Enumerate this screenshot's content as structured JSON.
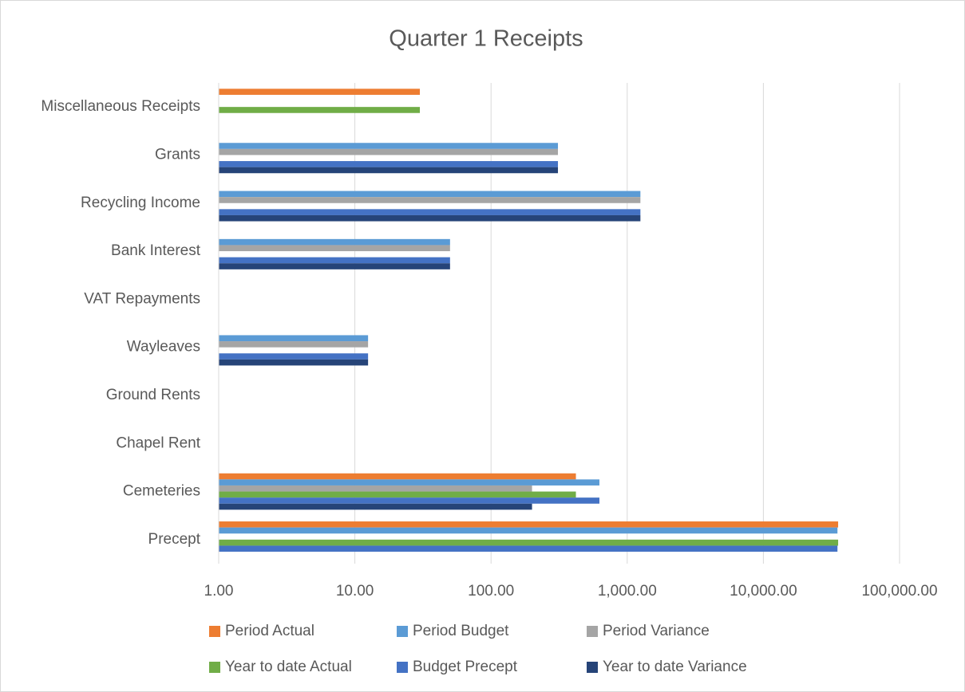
{
  "chart_data": {
    "type": "bar",
    "orientation": "horizontal",
    "title": "Quarter 1 Receipts",
    "categories": [
      "Miscellaneous Receipts",
      "Grants",
      "Recycling Income",
      "Bank Interest",
      "VAT Repayments",
      "Wayleaves",
      "Ground Rents",
      "Chapel Rent",
      "Cemeteries",
      "Precept"
    ],
    "series": [
      {
        "name": "Period Actual",
        "color": "#ed7d31",
        "values": [
          30,
          null,
          null,
          null,
          null,
          null,
          null,
          null,
          420,
          35400
        ]
      },
      {
        "name": "Period Budget",
        "color": "#5b9bd5",
        "values": [
          null,
          310,
          1250,
          50,
          null,
          12.5,
          null,
          null,
          625,
          35000
        ]
      },
      {
        "name": "Period Variance",
        "color": "#a5a5a5",
        "values": [
          null,
          310,
          1250,
          50,
          null,
          12.5,
          null,
          null,
          200,
          null
        ]
      },
      {
        "name": "Year to date Actual",
        "color": "#70ad47",
        "values": [
          30,
          null,
          null,
          null,
          null,
          null,
          null,
          null,
          420,
          35400
        ]
      },
      {
        "name": "Budget Precept",
        "color": "#4472c4",
        "values": [
          null,
          310,
          1250,
          50,
          null,
          12.5,
          null,
          null,
          625,
          35000
        ]
      },
      {
        "name": "Year to date Variance",
        "color": "#264478",
        "values": [
          null,
          310,
          1250,
          50,
          null,
          12.5,
          null,
          null,
          200,
          null
        ]
      }
    ],
    "xscale": "log",
    "xlim": [
      1,
      100000
    ],
    "xticks": [
      {
        "value": 1,
        "label": "1.00"
      },
      {
        "value": 10,
        "label": "10.00"
      },
      {
        "value": 100,
        "label": "100.00"
      },
      {
        "value": 1000,
        "label": "1,000.00"
      },
      {
        "value": 10000,
        "label": "10,000.00"
      },
      {
        "value": 100000,
        "label": "100,000.00"
      }
    ],
    "grid": true,
    "legend": "bottom"
  }
}
